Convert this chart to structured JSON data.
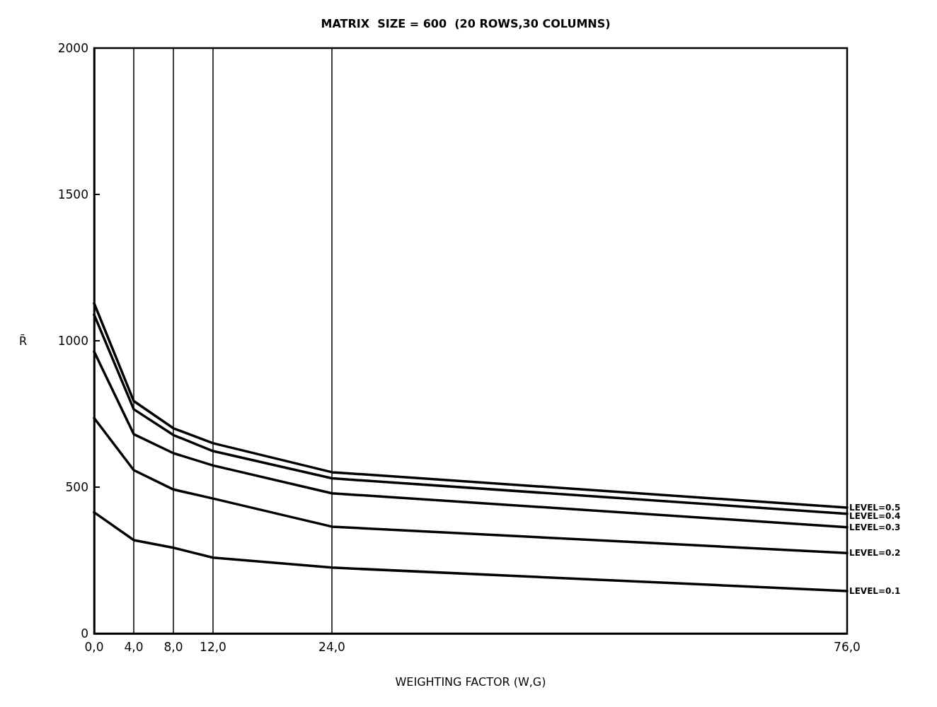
{
  "chart_data": {
    "type": "line",
    "title": "MATRIX  SIZE = 600  (20 ROWS,30 COLUMNS)",
    "xlabel": "WEIGHTING FACTOR (W,G)",
    "ylabel": "R̄",
    "x": [
      0,
      4,
      8,
      12,
      24,
      76
    ],
    "series": [
      {
        "name": "LEVEL=0.5",
        "color": "#000000",
        "values": [
          1128,
          794,
          701,
          650,
          551,
          430
        ]
      },
      {
        "name": "LEVEL=0.4",
        "color": "#000000",
        "values": [
          1089,
          766,
          678,
          623,
          530,
          409
        ]
      },
      {
        "name": "LEVEL=0.3",
        "color": "#000000",
        "values": [
          963,
          681,
          616,
          574,
          479,
          363
        ]
      },
      {
        "name": "LEVEL=0.2",
        "color": "#000000",
        "values": [
          736,
          558,
          492,
          461,
          365,
          275
        ]
      },
      {
        "name": "LEVEL=0.1",
        "color": "#000000",
        "values": [
          414,
          319,
          293,
          259,
          225,
          145
        ]
      }
    ],
    "xlim": [
      0,
      76
    ],
    "xticks": [
      {
        "value": 0,
        "label": "0,0"
      },
      {
        "value": 4,
        "label": "4,0"
      },
      {
        "value": 8,
        "label": "8,0"
      },
      {
        "value": 12,
        "label": "12,0"
      },
      {
        "value": 24,
        "label": "24,0"
      },
      {
        "value": 76,
        "label": "76,0"
      }
    ],
    "ylim": [
      0,
      2000
    ],
    "yticks": [
      0,
      500,
      1000,
      1500,
      2000
    ],
    "ref_lines": [
      {
        "axis": "x",
        "value": 4,
        "color": "#000000"
      },
      {
        "axis": "x",
        "value": 8,
        "color": "#000000"
      },
      {
        "axis": "x",
        "value": 12,
        "color": "#000000"
      },
      {
        "axis": "x",
        "value": 24,
        "color": "#000000"
      }
    ],
    "grid": false,
    "legend": false,
    "marker": "none",
    "line_style": "solid"
  }
}
